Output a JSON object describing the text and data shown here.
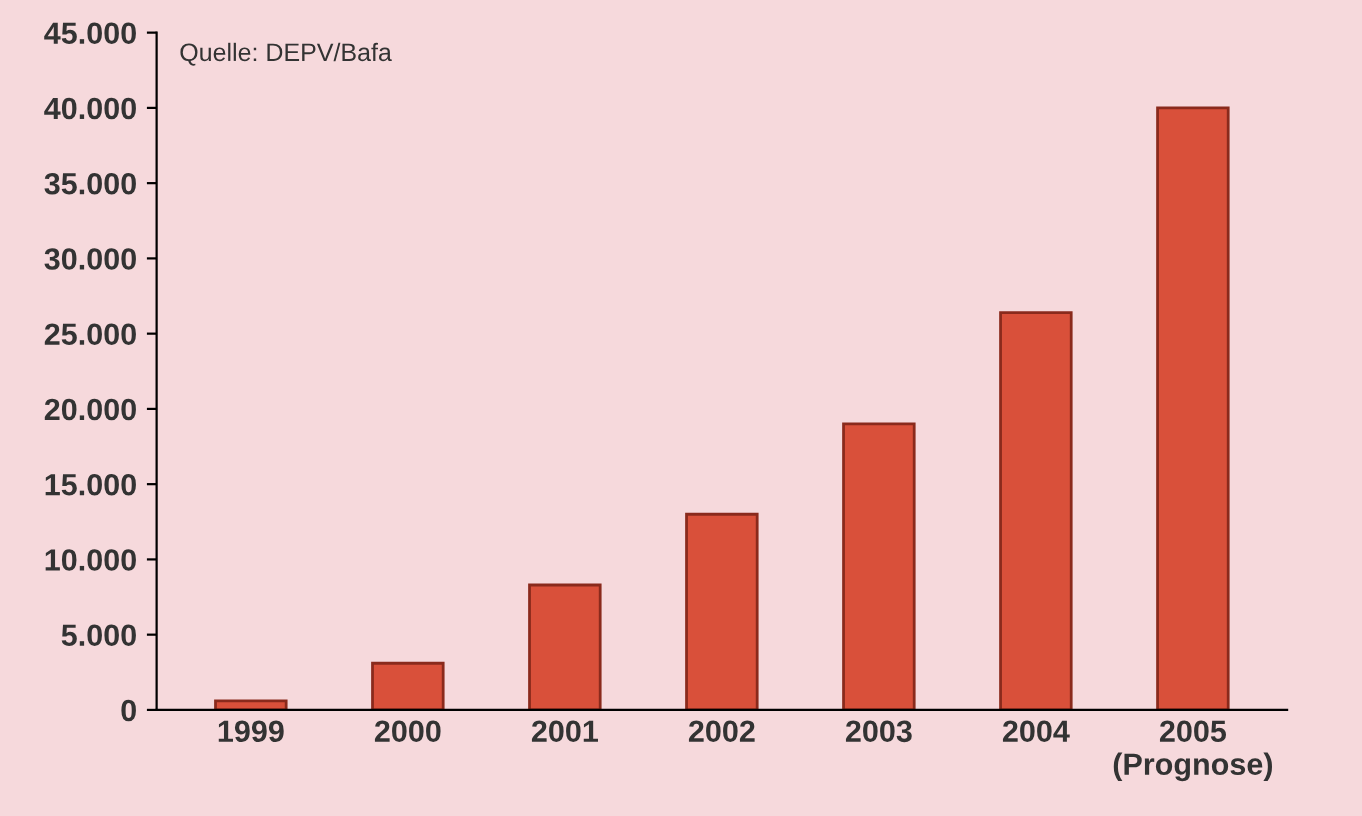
{
  "chart_data": {
    "type": "bar",
    "categories": [
      "1999",
      "2000",
      "2001",
      "2002",
      "2003",
      "2004",
      "2005\n(Prognose)"
    ],
    "values": [
      600,
      3100,
      8300,
      13000,
      19000,
      26400,
      40000
    ],
    "color": "#d9503a",
    "ylim": [
      0,
      45000
    ],
    "yticks": [
      {
        "value": 0,
        "label": "0"
      },
      {
        "value": 5000,
        "label": "5.000"
      },
      {
        "value": 10000,
        "label": "10.000"
      },
      {
        "value": 15000,
        "label": "15.000"
      },
      {
        "value": 20000,
        "label": "20.000"
      },
      {
        "value": 25000,
        "label": "25.000"
      },
      {
        "value": 30000,
        "label": "30.000"
      },
      {
        "value": 35000,
        "label": "35.000"
      },
      {
        "value": 40000,
        "label": "40.000"
      },
      {
        "value": 45000,
        "label": "45.000"
      }
    ],
    "annotations": [
      "Quelle: DEPV/Bafa"
    ],
    "grid": false
  }
}
